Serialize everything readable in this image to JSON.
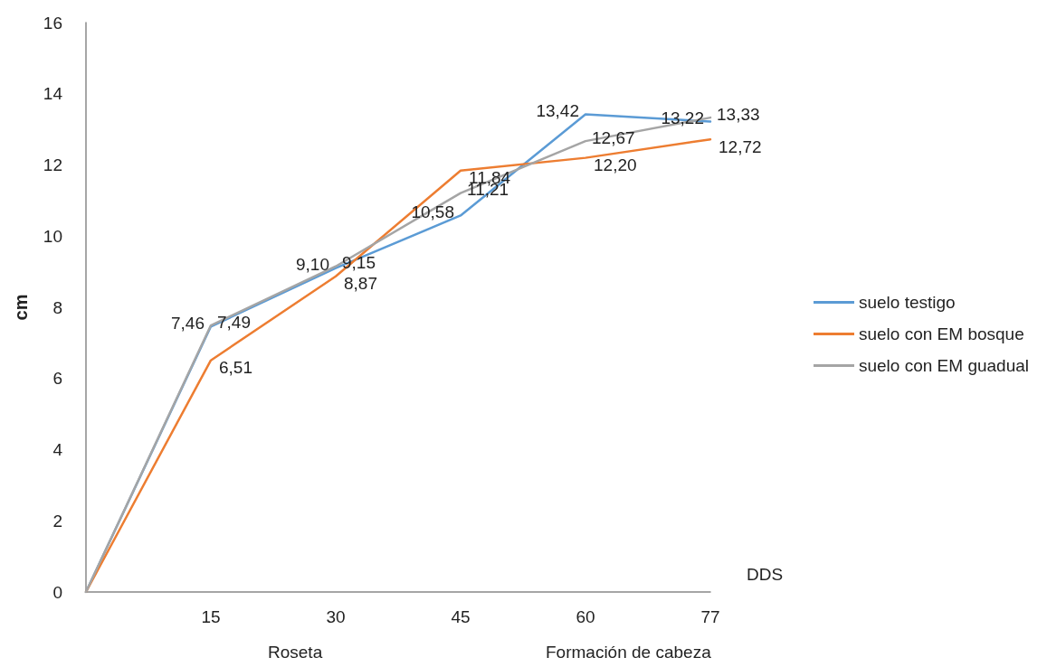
{
  "chart_data": {
    "type": "line",
    "xlabel": "DDS",
    "ylabel": "cm",
    "categories": [
      null,
      "15",
      "30",
      "45",
      "60",
      "77"
    ],
    "series": [
      {
        "name": "suelo testigo",
        "color": "#5b9bd5",
        "values": [
          0,
          7.46,
          9.1,
          10.58,
          13.42,
          13.22
        ],
        "value_labels": [
          null,
          "7,46",
          "9,10",
          "10,58",
          "13,42",
          "13,22"
        ]
      },
      {
        "name": "suelo con EM bosque",
        "color": "#ed7d31",
        "values": [
          0,
          6.51,
          8.87,
          11.84,
          12.2,
          12.72
        ],
        "value_labels": [
          null,
          "6,51",
          "8,87",
          "11,84",
          "12,20",
          "12,72"
        ]
      },
      {
        "name": "suelo con EM guadual",
        "color": "#a5a5a5",
        "values": [
          0,
          7.49,
          9.15,
          11.21,
          12.67,
          13.33
        ],
        "value_labels": [
          null,
          "7,49",
          "9,15",
          "11,21",
          "12,67",
          "13,33"
        ]
      }
    ],
    "ylim": [
      0,
      16
    ],
    "yticks": [
      0,
      2,
      4,
      6,
      8,
      10,
      12,
      14,
      16
    ],
    "grid": false,
    "legend": "right",
    "marker": "none",
    "line_style": "solid",
    "annotations": [
      "Roseta",
      "Formación de cabeza"
    ]
  }
}
